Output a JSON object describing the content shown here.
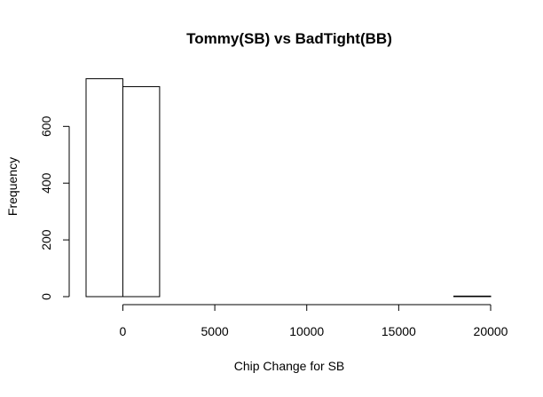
{
  "chart_data": {
    "type": "histogram",
    "title": "Tommy(SB) vs BadTight(BB)",
    "xlabel": "Chip Change for SB",
    "ylabel": "Frequency",
    "x_ticks": [
      0,
      5000,
      10000,
      15000,
      20000
    ],
    "y_ticks": [
      0,
      200,
      400,
      600
    ],
    "xlim": [
      -2000,
      20000
    ],
    "ylim": [
      0,
      770
    ],
    "bin_width": 2000,
    "bins": [
      {
        "x0": -2000,
        "x1": 0,
        "count": 768
      },
      {
        "x0": 0,
        "x1": 2000,
        "count": 740
      },
      {
        "x0": 2000,
        "x1": 4000,
        "count": 0
      },
      {
        "x0": 4000,
        "x1": 6000,
        "count": 0
      },
      {
        "x0": 6000,
        "x1": 8000,
        "count": 0
      },
      {
        "x0": 8000,
        "x1": 10000,
        "count": 0
      },
      {
        "x0": 10000,
        "x1": 12000,
        "count": 0
      },
      {
        "x0": 12000,
        "x1": 14000,
        "count": 0
      },
      {
        "x0": 14000,
        "x1": 16000,
        "count": 0
      },
      {
        "x0": 16000,
        "x1": 18000,
        "count": 0
      },
      {
        "x0": 18000,
        "x1": 20000,
        "count": 2
      }
    ],
    "grid": false,
    "bar_fill": "#ffffff",
    "bar_stroke": "#000000"
  }
}
